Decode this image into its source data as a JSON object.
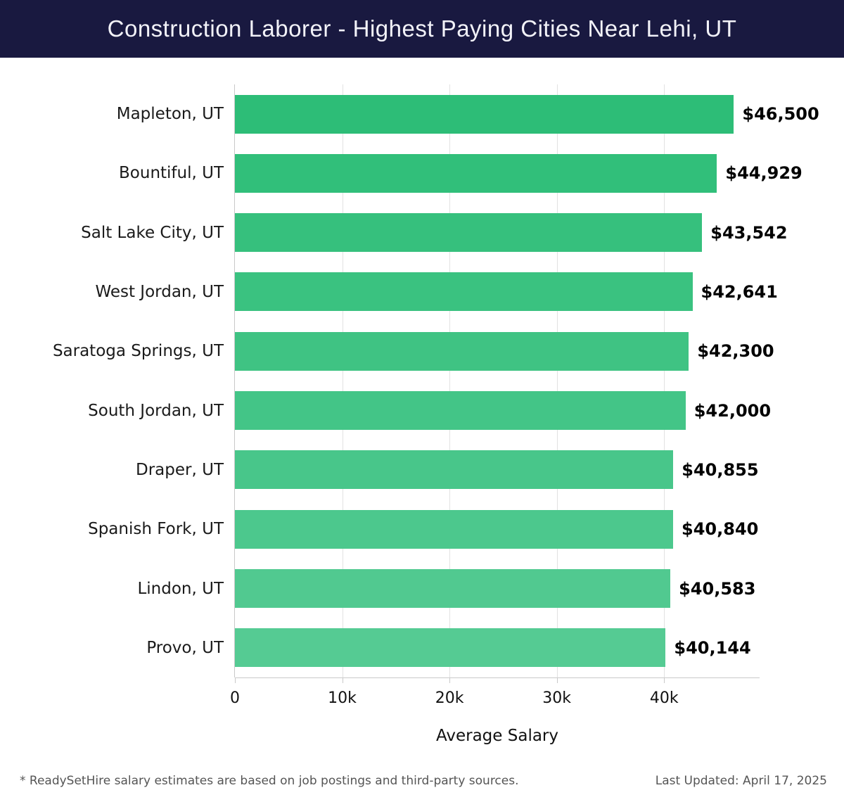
{
  "header": {
    "title": "Construction Laborer - Highest Paying Cities Near Lehi, UT"
  },
  "chart_data": {
    "type": "bar",
    "orientation": "horizontal",
    "title": "Construction Laborer - Highest Paying Cities Near Lehi, UT",
    "categories": [
      "Mapleton, UT",
      "Bountiful, UT",
      "Salt Lake City, UT",
      "West Jordan, UT",
      "Saratoga Springs, UT",
      "South Jordan, UT",
      "Draper, UT",
      "Spanish Fork, UT",
      "Lindon, UT",
      "Provo, UT"
    ],
    "values": [
      46500,
      44929,
      43542,
      42641,
      42300,
      42000,
      40855,
      40840,
      40583,
      40144
    ],
    "value_labels": [
      "$46,500",
      "$44,929",
      "$43,542",
      "$42,641",
      "$42,300",
      "$42,000",
      "$40,855",
      "$40,840",
      "$40,583",
      "$40,144"
    ],
    "bar_colors": [
      "#2dbd77",
      "#31bf7a",
      "#36c07d",
      "#3ac280",
      "#3fc383",
      "#43c587",
      "#48c68a",
      "#4cc88d",
      "#51c990",
      "#55cb93"
    ],
    "xlabel": "Average Salary",
    "ylabel": "",
    "xlim": [
      0,
      48900
    ],
    "x_ticks": [
      {
        "value": 0,
        "label": "0"
      },
      {
        "value": 10000,
        "label": "10k"
      },
      {
        "value": 20000,
        "label": "20k"
      },
      {
        "value": 30000,
        "label": "30k"
      },
      {
        "value": 40000,
        "label": "40k"
      }
    ],
    "grid": "vertical",
    "legend": "none"
  },
  "colors": {
    "header_bg": "#191940",
    "title_text": "#f2f2f8",
    "gridline": "#e2e2e2",
    "axis_line": "#c9c9c9"
  },
  "footer": {
    "disclaimer": "* ReadySetHire salary estimates are based on job postings and third-party sources.",
    "last_updated": "Last Updated: April 17, 2025"
  }
}
